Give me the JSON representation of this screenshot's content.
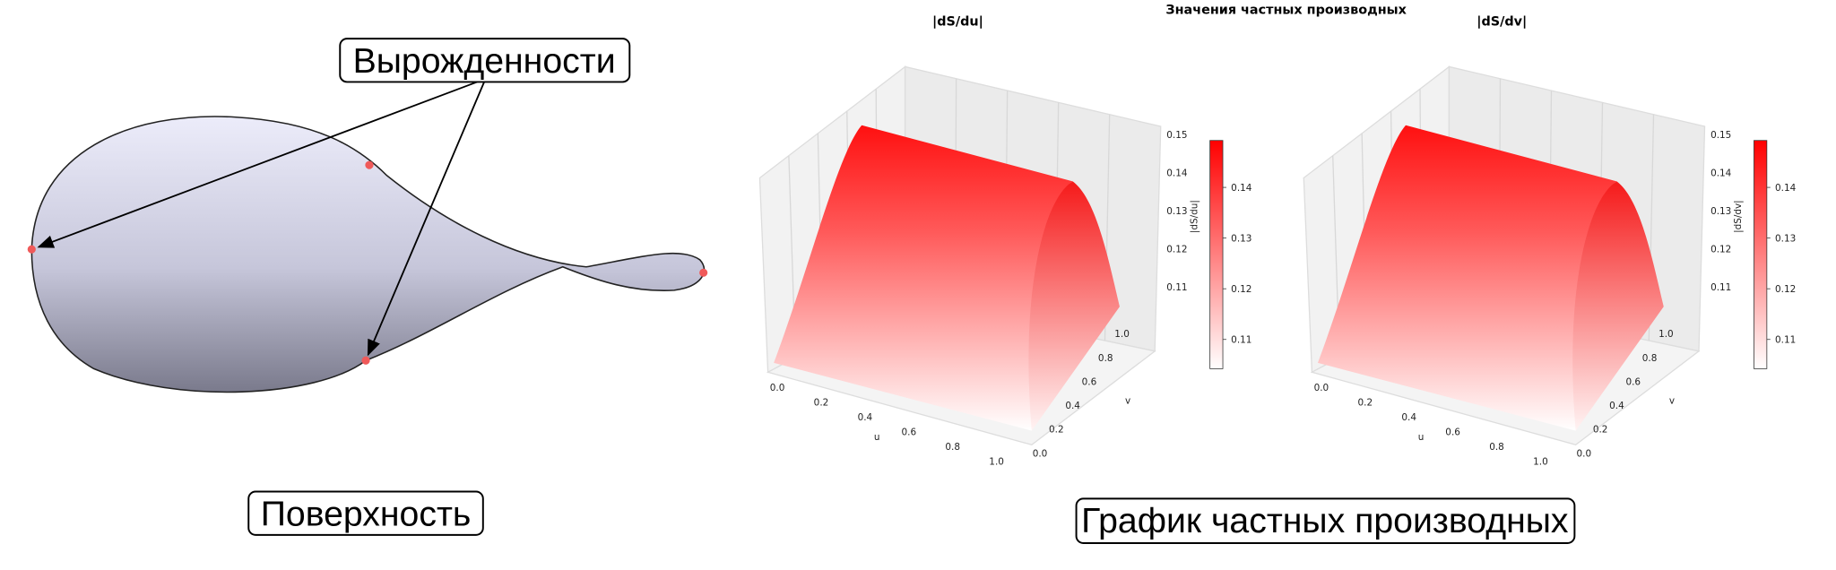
{
  "left": {
    "label": "Вырожденности",
    "caption": "Поверхность"
  },
  "right": {
    "title": "Значения частных производных",
    "caption": "График частных производных",
    "plots": [
      {
        "title": "|dS/du|",
        "zlabel": "|dS/du|",
        "xlabel": "u",
        "ylabel": "v",
        "xticks": [
          "0.0",
          "0.2",
          "0.4",
          "0.6",
          "0.8",
          "1.0"
        ],
        "yticks": [
          "0.0",
          "0.2",
          "0.4",
          "0.6",
          "0.8",
          "1.0"
        ],
        "zticks": [
          "0.11",
          "0.12",
          "0.13",
          "0.14",
          "0.15"
        ],
        "colorbar_ticks": [
          "0.11",
          "0.12",
          "0.13",
          "0.14"
        ]
      },
      {
        "title": "|dS/dv|",
        "zlabel": "|dS/dv|",
        "xlabel": "u",
        "ylabel": "v",
        "xticks": [
          "0.0",
          "0.2",
          "0.4",
          "0.6",
          "0.8",
          "1.0"
        ],
        "yticks": [
          "0.0",
          "0.2",
          "0.4",
          "0.6",
          "0.8",
          "1.0"
        ],
        "zticks": [
          "0.11",
          "0.12",
          "0.13",
          "0.14",
          "0.15"
        ],
        "colorbar_ticks": [
          "0.11",
          "0.12",
          "0.13",
          "0.14"
        ]
      }
    ]
  }
}
